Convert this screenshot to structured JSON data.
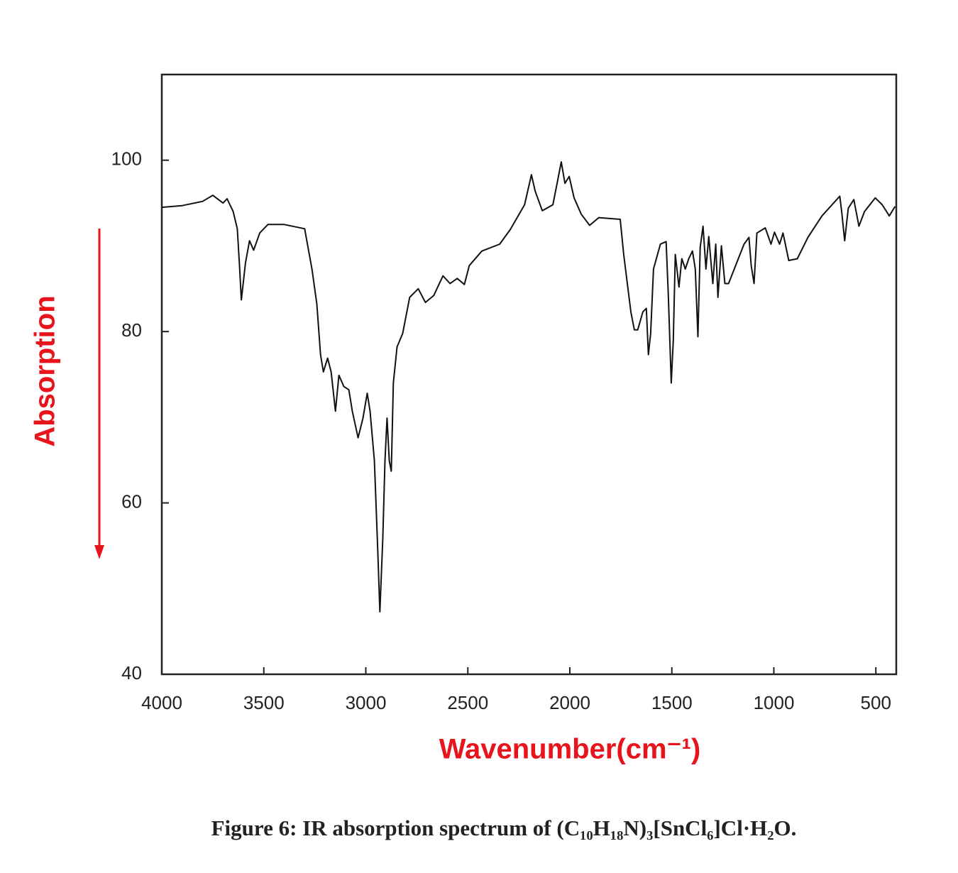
{
  "chart_data": {
    "type": "line",
    "x_label": "Wavenumber(cm⁻¹)",
    "y_label": "Absorption",
    "caption": "Figure 6:  IR absorption spectrum of (C₁₀H₁₈N)₃[SnCl₆]Cl·H₂O.",
    "color": "#111111",
    "xlim": [
      4000,
      400
    ],
    "xticks": [
      4000,
      3500,
      3000,
      2500,
      2000,
      1500,
      1000,
      500
    ],
    "ylim": [
      40,
      110
    ],
    "yticks": [
      40,
      60,
      80,
      100
    ],
    "x": [
      4000,
      3900,
      3800,
      3750,
      3700,
      3680,
      3650,
      3630,
      3620,
      3610,
      3590,
      3570,
      3550,
      3520,
      3480,
      3400,
      3300,
      3264,
      3240,
      3222,
      3208,
      3187,
      3170,
      3149,
      3132,
      3108,
      3083,
      3066,
      3038,
      3014,
      2993,
      2979,
      2958,
      2941,
      2931,
      2917,
      2906,
      2896,
      2885,
      2875,
      2865,
      2847,
      2819,
      2785,
      2743,
      2708,
      2667,
      2622,
      2587,
      2552,
      2517,
      2493,
      2431,
      2344,
      2292,
      2222,
      2188,
      2170,
      2135,
      2083,
      2059,
      2042,
      2024,
      2003,
      1979,
      1944,
      1903,
      1858,
      1753,
      1736,
      1701,
      1684,
      1667,
      1642,
      1625,
      1615,
      1604,
      1590,
      1556,
      1528,
      1517,
      1503,
      1493,
      1483,
      1465,
      1451,
      1434,
      1417,
      1399,
      1385,
      1372,
      1361,
      1347,
      1333,
      1319,
      1299,
      1285,
      1274,
      1257,
      1240,
      1222,
      1181,
      1146,
      1122,
      1111,
      1097,
      1083,
      1042,
      1014,
      997,
      972,
      955,
      927,
      885,
      833,
      764,
      677,
      667,
      653,
      635,
      608,
      583,
      556,
      503,
      469,
      434,
      406
    ],
    "values": [
      94.5,
      94.7,
      95.2,
      95.9,
      95.0,
      95.5,
      94.0,
      92.0,
      88,
      83.7,
      88,
      90.6,
      89.5,
      91.5,
      92.5,
      92.5,
      92,
      87.3,
      83.2,
      77.3,
      75.3,
      76.9,
      75.3,
      70.7,
      74.9,
      73.6,
      73.2,
      70.7,
      67.6,
      69.9,
      72.8,
      70.7,
      64.9,
      54.1,
      47.3,
      55.8,
      64.9,
      69.9,
      64.9,
      63.7,
      74.0,
      78.2,
      79.8,
      84.0,
      85.0,
      83.4,
      84.2,
      86.5,
      85.6,
      86.2,
      85.5,
      87.7,
      89.4,
      90.2,
      91.9,
      94.8,
      98.3,
      96.4,
      94.1,
      94.8,
      97.7,
      99.8,
      97.3,
      98.1,
      95.6,
      93.7,
      92.4,
      93.3,
      93.1,
      89.0,
      82.3,
      80.2,
      80.2,
      82.3,
      82.7,
      77.3,
      79.8,
      87.3,
      90.2,
      90.5,
      84.0,
      74.0,
      79.0,
      89.0,
      85.2,
      88.5,
      87.3,
      88.5,
      89.4,
      87.3,
      79.4,
      89.8,
      92.3,
      87.3,
      91.1,
      85.6,
      90.2,
      84.0,
      90.0,
      85.6,
      85.6,
      88.1,
      90.2,
      91.0,
      87.7,
      85.6,
      91.5,
      92.1,
      90.2,
      91.6,
      90.2,
      91.5,
      88.3,
      88.5,
      91.0,
      93.5,
      95.8,
      93.9,
      90.6,
      94.4,
      95.4,
      92.3,
      94.0,
      95.6,
      94.8,
      93.5,
      94.6
    ]
  }
}
